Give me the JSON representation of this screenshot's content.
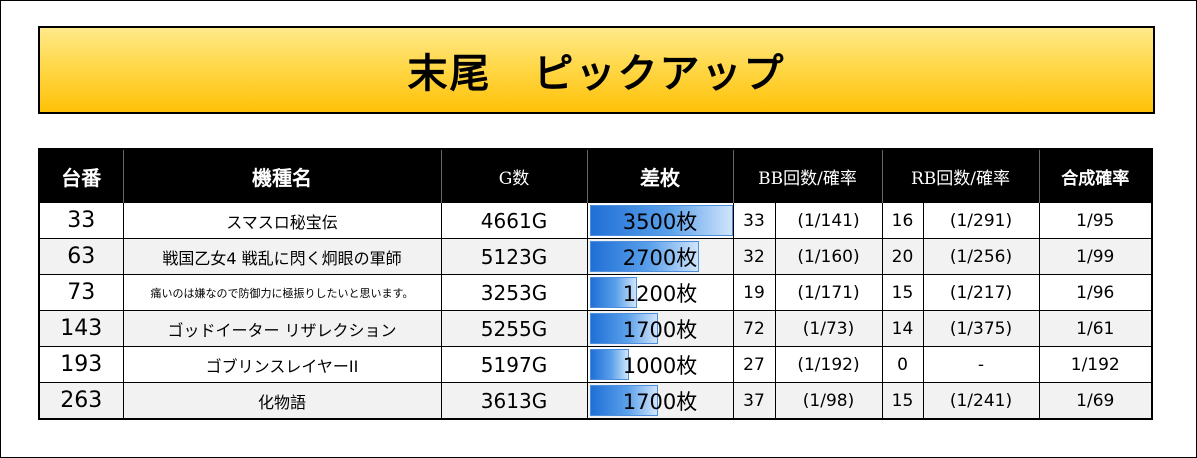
{
  "title": "末尾　ピックアップ",
  "headers": {
    "dai": "台番",
    "machine": "機種名",
    "games": "G数",
    "diff": "差枚",
    "bb": "BB回数/確率",
    "rb": "RB回数/確率",
    "combined": "合成確率"
  },
  "max_diff": 3500,
  "rows": [
    {
      "dai": "33",
      "machine": "スマスロ秘宝伝",
      "games": "4661G",
      "diff_value": 3500,
      "diff": "3500枚",
      "bb": "33",
      "bb_rate": "(1/141)",
      "rb": "16",
      "rb_rate": "(1/291)",
      "combined": "1/95"
    },
    {
      "dai": "63",
      "machine": "戦国乙女4 戦乱に閃く炯眼の軍師",
      "games": "5123G",
      "diff_value": 2700,
      "diff": "2700枚",
      "bb": "32",
      "bb_rate": "(1/160)",
      "rb": "20",
      "rb_rate": "(1/256)",
      "combined": "1/99"
    },
    {
      "dai": "73",
      "machine": "痛いのは嫌なので防御力に極振りしたいと思います。",
      "games": "3253G",
      "diff_value": 1200,
      "diff": "1200枚",
      "bb": "19",
      "bb_rate": "(1/171)",
      "rb": "15",
      "rb_rate": "(1/217)",
      "combined": "1/96"
    },
    {
      "dai": "143",
      "machine": "ゴッドイーター リザレクション",
      "games": "5255G",
      "diff_value": 1700,
      "diff": "1700枚",
      "bb": "72",
      "bb_rate": "(1/73)",
      "rb": "14",
      "rb_rate": "(1/375)",
      "combined": "1/61"
    },
    {
      "dai": "193",
      "machine": "ゴブリンスレイヤーII",
      "games": "5197G",
      "diff_value": 1000,
      "diff": "1000枚",
      "bb": "27",
      "bb_rate": "(1/192)",
      "rb": "0",
      "rb_rate": "-",
      "combined": "1/192"
    },
    {
      "dai": "263",
      "machine": "化物語",
      "games": "3613G",
      "diff_value": 1700,
      "diff": "1700枚",
      "bb": "37",
      "bb_rate": "(1/98)",
      "rb": "15",
      "rb_rate": "(1/241)",
      "combined": "1/69"
    }
  ]
}
